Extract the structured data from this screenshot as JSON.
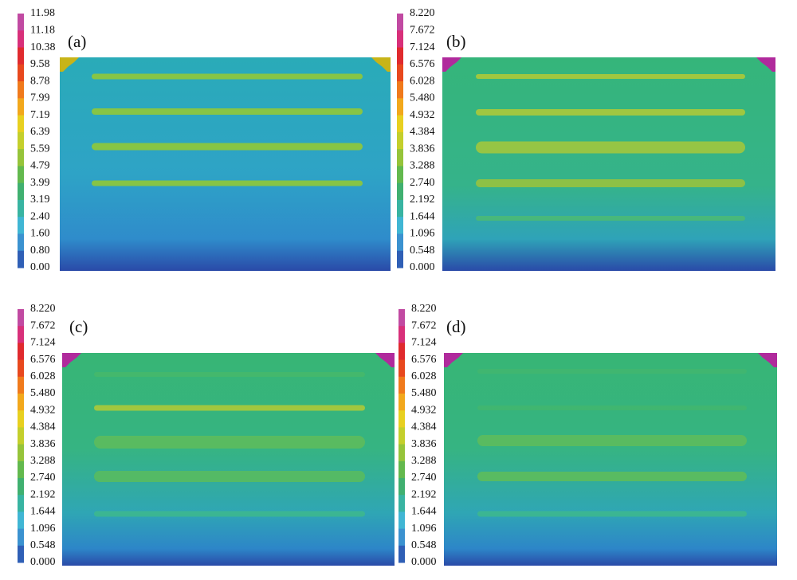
{
  "panels": [
    {
      "label": "(a)",
      "colorbar_ticks": [
        "11.98",
        "11.18",
        "10.38",
        "9.58",
        "8.78",
        "7.99",
        "7.19",
        "6.39",
        "5.59",
        "4.79",
        "3.99",
        "3.19",
        "2.40",
        "1.60",
        "0.80",
        "0.00"
      ]
    },
    {
      "label": "(b)",
      "colorbar_ticks": [
        "8.220",
        "7.672",
        "7.124",
        "6.576",
        "6.028",
        "5.480",
        "4.932",
        "4.384",
        "3.836",
        "3.288",
        "2.740",
        "2.192",
        "1.644",
        "1.096",
        "0.548",
        "0.000"
      ]
    },
    {
      "label": "(c)",
      "colorbar_ticks": [
        "8.220",
        "7.672",
        "7.124",
        "6.576",
        "6.028",
        "5.480",
        "4.932",
        "4.384",
        "3.836",
        "3.288",
        "2.740",
        "2.192",
        "1.644",
        "1.096",
        "0.548",
        "0.000"
      ]
    },
    {
      "label": "(d)",
      "colorbar_ticks": [
        "8.220",
        "7.672",
        "7.124",
        "6.576",
        "6.028",
        "5.480",
        "4.932",
        "4.384",
        "3.836",
        "3.288",
        "2.740",
        "2.192",
        "1.644",
        "1.096",
        "0.548",
        "0.000"
      ]
    }
  ]
}
